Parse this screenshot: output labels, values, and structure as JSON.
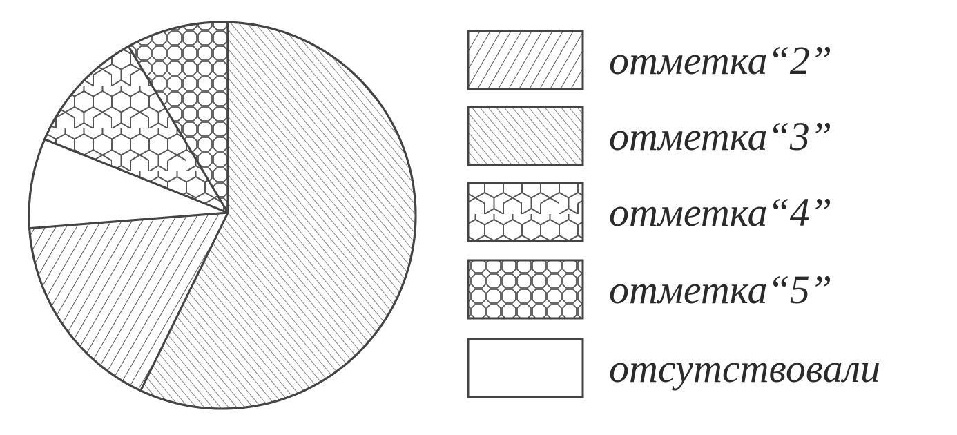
{
  "chart_data": {
    "type": "pie",
    "title": "",
    "slices": [
      {
        "label": "отметка“3”",
        "value": 56.5,
        "pattern": "diagonal-back"
      },
      {
        "label": "отметка“2”",
        "value": 17.0,
        "pattern": "diagonal-forward"
      },
      {
        "label": "отсутствовали",
        "value": 7.5,
        "pattern": "blank"
      },
      {
        "label": "отметка“4”",
        "value": 10.5,
        "pattern": "hexagons"
      },
      {
        "label": "отметка“5”",
        "value": 8.5,
        "pattern": "octagons"
      }
    ],
    "legend": [
      {
        "label": "отметка“2”",
        "pattern": "diagonal-forward"
      },
      {
        "label": "отметка“3”",
        "pattern": "diagonal-back"
      },
      {
        "label": "отметка“4”",
        "pattern": "hexagons"
      },
      {
        "label": "отметка“5”",
        "pattern": "octagons"
      },
      {
        "label": "отсутствовали",
        "pattern": "blank"
      }
    ],
    "legend_position": "right",
    "colors": {
      "stroke": "#444444",
      "fill": "#ffffff",
      "text": "#2a2a2a"
    }
  }
}
